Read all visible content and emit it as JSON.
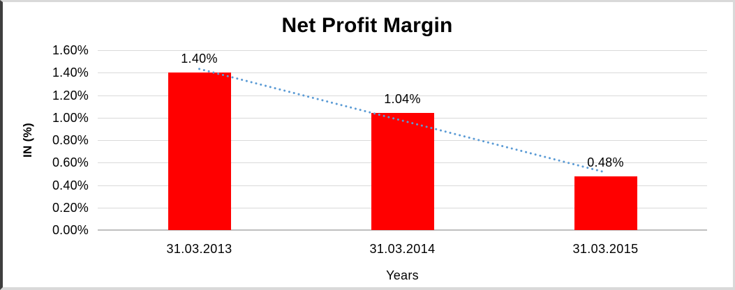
{
  "frame": {
    "background": "#FFFFFF",
    "border_color": "#D9D9D9",
    "left_edge_color": "#3F3F3F"
  },
  "chart_data": {
    "type": "bar",
    "title": "Net Profit Margin",
    "xlabel": "Years",
    "ylabel": "IN (%)",
    "categories": [
      "31.03.2013",
      "31.03.2014",
      "31.03.2015"
    ],
    "values": [
      1.4,
      1.04,
      0.48
    ],
    "data_labels": [
      "1.40%",
      "1.04%",
      "0.48%"
    ],
    "y_ticks": [
      "1.60%",
      "1.40%",
      "1.20%",
      "1.00%",
      "0.80%",
      "0.60%",
      "0.40%",
      "0.20%",
      "0.00%"
    ],
    "ylim": [
      0,
      1.6
    ],
    "grid": true,
    "legend": "none",
    "bar_color": "#FF0000",
    "gridline_color": "#D9D9D9",
    "axis_line_color": "#BFBFBF",
    "text_color": "#000000",
    "trendline": {
      "type": "linear",
      "style": "dotted",
      "color": "#5B9BD5",
      "start_value": 1.4333,
      "end_value": 0.5133
    }
  }
}
